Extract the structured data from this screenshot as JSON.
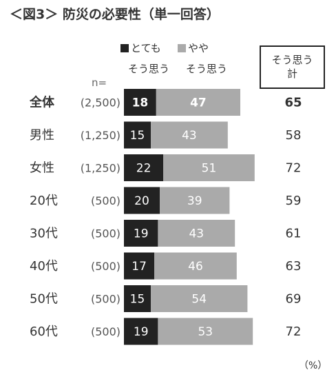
{
  "title": "＜図3＞ 防災の必要性（単一回答）",
  "legend": [
    {
      "line1": "とても",
      "line2": "そう思う",
      "color": "#222222"
    },
    {
      "line1": "やや",
      "line2": "そう思う",
      "color": "#aaaaaa"
    }
  ],
  "n_label": "n=",
  "total_header": {
    "line1": "そう思う",
    "line2": "計"
  },
  "unit_note": "（%）",
  "chart_data": {
    "type": "bar",
    "orientation": "horizontal",
    "stacked": true,
    "categories": [
      "全体",
      "男性",
      "女性",
      "20代",
      "30代",
      "40代",
      "50代",
      "60代"
    ],
    "n": [
      "(2,500)",
      "(1,250)",
      "(1,250)",
      "(500)",
      "(500)",
      "(500)",
      "(500)",
      "(500)"
    ],
    "series": [
      {
        "name": "とてもそう思う",
        "values": [
          18,
          15,
          22,
          20,
          19,
          17,
          15,
          19
        ],
        "color": "#222222"
      },
      {
        "name": "ややそう思う",
        "values": [
          47,
          43,
          51,
          39,
          43,
          46,
          54,
          53
        ],
        "color": "#aaaaaa"
      }
    ],
    "totals": [
      65,
      58,
      72,
      59,
      61,
      63,
      69,
      72
    ],
    "highlight_first_row": true,
    "unit": "%"
  }
}
